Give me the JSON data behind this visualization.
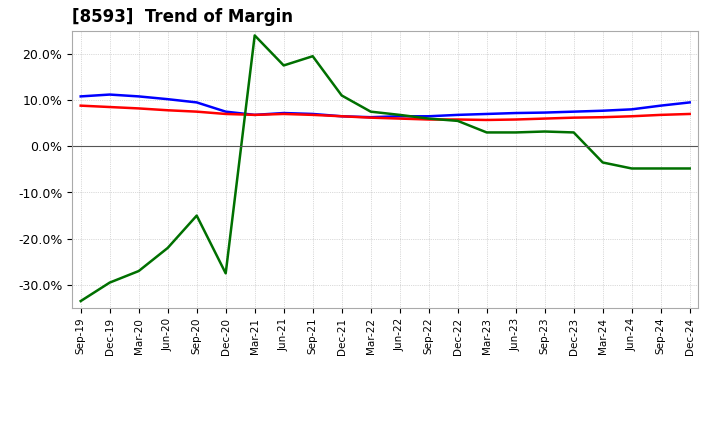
{
  "title": "[8593]  Trend of Margin",
  "x_labels": [
    "Sep-19",
    "Dec-19",
    "Mar-20",
    "Jun-20",
    "Sep-20",
    "Dec-20",
    "Mar-21",
    "Jun-21",
    "Sep-21",
    "Dec-21",
    "Mar-22",
    "Jun-22",
    "Sep-22",
    "Dec-22",
    "Mar-23",
    "Jun-23",
    "Sep-23",
    "Dec-23",
    "Mar-24",
    "Jun-24",
    "Sep-24",
    "Dec-24"
  ],
  "ordinary_income": [
    10.8,
    11.2,
    10.8,
    10.2,
    9.5,
    7.5,
    6.8,
    7.2,
    7.0,
    6.5,
    6.3,
    6.5,
    6.5,
    6.8,
    7.0,
    7.2,
    7.3,
    7.5,
    7.7,
    8.0,
    8.8,
    9.5
  ],
  "net_income": [
    8.8,
    8.5,
    8.2,
    7.8,
    7.5,
    7.0,
    6.8,
    7.0,
    6.8,
    6.5,
    6.2,
    6.0,
    5.8,
    5.8,
    5.7,
    5.8,
    6.0,
    6.2,
    6.3,
    6.5,
    6.8,
    7.0
  ],
  "operating_cashflow": [
    -33.5,
    -29.5,
    -27.0,
    -22.0,
    -15.0,
    -27.5,
    24.0,
    17.5,
    19.5,
    11.0,
    7.5,
    6.8,
    6.0,
    5.5,
    3.0,
    3.0,
    3.2,
    3.0,
    -3.5,
    -4.8,
    -4.8,
    -4.8
  ],
  "ylim": [
    -35,
    25
  ],
  "yticks": [
    -30,
    -20,
    -10,
    0,
    10,
    20
  ],
  "colors": {
    "ordinary_income": "#0000FF",
    "net_income": "#FF0000",
    "operating_cashflow": "#007000"
  },
  "background_color": "#FFFFFF",
  "plot_bg_color": "#FFFFFF",
  "grid_color": "#999999",
  "line_width": 1.8,
  "title_fontsize": 12,
  "tick_fontsize": 7.5,
  "legend_fontsize": 9
}
